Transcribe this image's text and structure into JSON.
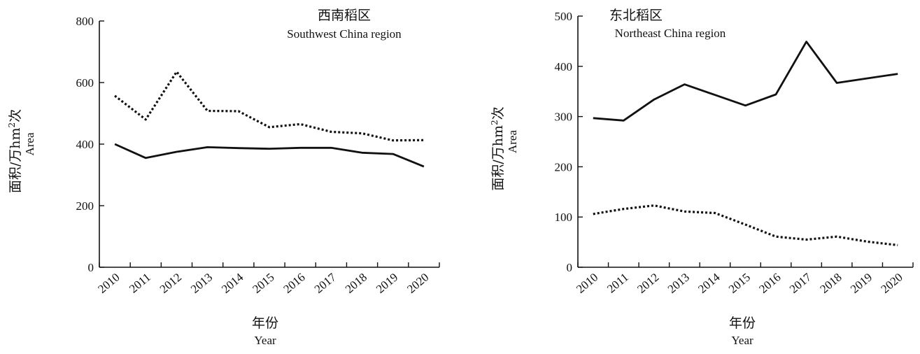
{
  "chart_data": [
    {
      "type": "line",
      "title": "西南稻区",
      "subtitle": "Southwest China region",
      "xlabel": "年份",
      "xlabel_en": "Year",
      "ylabel_prefix": "面积/万hm",
      "ylabel_sup": "2",
      "ylabel_suffix": "次",
      "ylabel_en": "Area",
      "ylim": [
        0,
        800
      ],
      "yticks": [
        0,
        200,
        400,
        600,
        800
      ],
      "categories": [
        "2010",
        "2011",
        "2012",
        "2013",
        "2014",
        "2015",
        "2016",
        "2017",
        "2018",
        "2019",
        "2020"
      ],
      "series": [
        {
          "style": "dotted",
          "color": "#111111",
          "values": [
            557,
            480,
            635,
            508,
            507,
            455,
            465,
            440,
            435,
            412,
            413
          ]
        },
        {
          "style": "solid",
          "color": "#111111",
          "values": [
            400,
            355,
            375,
            390,
            387,
            385,
            388,
            388,
            372,
            368,
            327
          ]
        }
      ]
    },
    {
      "type": "line",
      "title": "东北稻区",
      "subtitle": "Northeast China region",
      "xlabel": "年份",
      "xlabel_en": "Year",
      "ylabel_prefix": "面积/万hm",
      "ylabel_sup": "2",
      "ylabel_suffix": "次",
      "ylabel_en": "Area",
      "ylim": [
        0,
        500
      ],
      "yticks": [
        0,
        100,
        200,
        300,
        400,
        500
      ],
      "categories": [
        "2010",
        "2011",
        "2012",
        "2013",
        "2014",
        "2015",
        "2016",
        "2017",
        "2018",
        "2019",
        "2020"
      ],
      "series": [
        {
          "style": "solid",
          "color": "#111111",
          "values": [
            297,
            292,
            334,
            364,
            343,
            322,
            344,
            449,
            367,
            376,
            385
          ]
        },
        {
          "style": "dotted",
          "color": "#111111",
          "values": [
            106,
            116,
            123,
            111,
            108,
            85,
            61,
            55,
            61,
            51,
            44
          ]
        }
      ]
    }
  ]
}
